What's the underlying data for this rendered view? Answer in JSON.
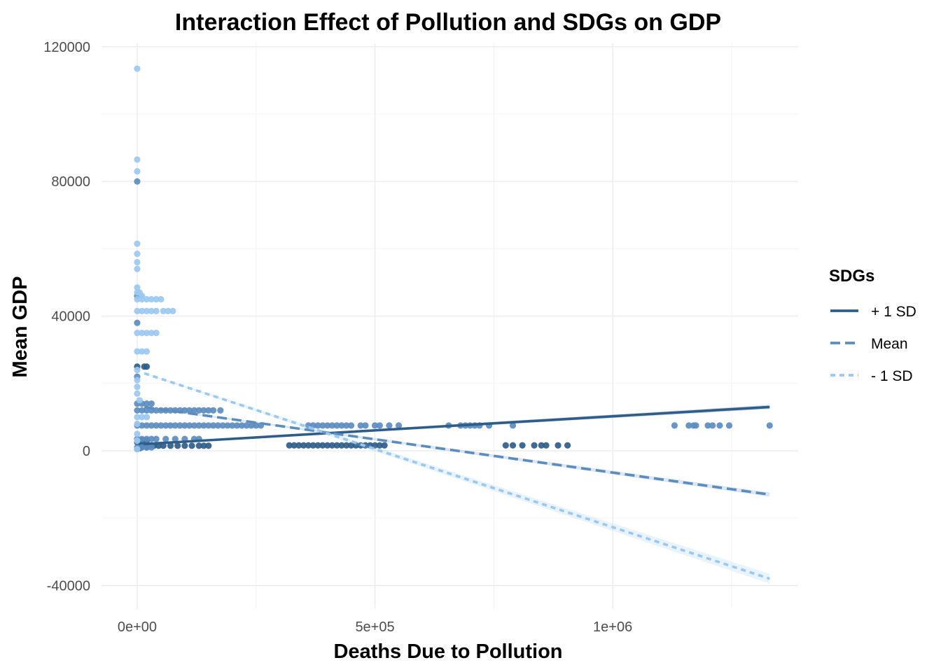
{
  "chart_data": {
    "type": "scatter",
    "title": "Interaction Effect of Pollution and SDGs on GDP",
    "xlabel": "Deaths Due to Pollution",
    "ylabel": "Mean GDP",
    "xlim": [
      -75000,
      1390000
    ],
    "ylim": [
      -47000,
      121000
    ],
    "x_ticks": [
      0,
      500000,
      1000000
    ],
    "x_tick_labels": [
      "0e+00",
      "5e+05",
      "1e+06"
    ],
    "y_ticks": [
      -40000,
      0,
      40000,
      80000,
      120000
    ],
    "y_tick_labels": [
      "-40000",
      "0",
      "40000",
      "80000",
      "120000"
    ],
    "grid": true,
    "legend": {
      "title": "SDGs",
      "position": "right"
    },
    "series": [
      {
        "name": "+ 1 SD",
        "color": "#2e5d8a",
        "linetype": "solid",
        "fit_line": {
          "x": [
            15000,
            1330000
          ],
          "y": [
            2000,
            13000
          ]
        },
        "points": [
          [
            0,
            500
          ],
          [
            2000,
            1000
          ],
          [
            4000,
            1500
          ],
          [
            6000,
            800
          ],
          [
            10000,
            1200
          ],
          [
            15000,
            1500
          ],
          [
            20000,
            1000
          ],
          [
            25000,
            1400
          ],
          [
            35000,
            1500
          ],
          [
            45000,
            1500
          ],
          [
            55000,
            1500
          ],
          [
            70000,
            1500
          ],
          [
            85000,
            1500
          ],
          [
            100000,
            1500
          ],
          [
            115000,
            1500
          ],
          [
            130000,
            1500
          ],
          [
            140000,
            1500
          ],
          [
            150000,
            1500
          ],
          [
            0,
            2500
          ],
          [
            5000,
            2500
          ],
          [
            10000,
            3000
          ],
          [
            20000,
            3000
          ],
          [
            0,
            25000
          ],
          [
            15000,
            25000
          ],
          [
            20000,
            25000
          ],
          [
            320000,
            1600
          ],
          [
            330000,
            1600
          ],
          [
            340000,
            1600
          ],
          [
            350000,
            1600
          ],
          [
            360000,
            1600
          ],
          [
            370000,
            1600
          ],
          [
            380000,
            1600
          ],
          [
            390000,
            1600
          ],
          [
            400000,
            1600
          ],
          [
            410000,
            1600
          ],
          [
            420000,
            1600
          ],
          [
            430000,
            1600
          ],
          [
            440000,
            1600
          ],
          [
            450000,
            1600
          ],
          [
            460000,
            1600
          ],
          [
            470000,
            1600
          ],
          [
            480000,
            1600
          ],
          [
            490000,
            1600
          ],
          [
            500000,
            1600
          ],
          [
            510000,
            1600
          ],
          [
            520000,
            1600
          ],
          [
            775000,
            1600
          ],
          [
            790000,
            1600
          ],
          [
            810000,
            1600
          ],
          [
            835000,
            1600
          ],
          [
            850000,
            1600
          ],
          [
            860000,
            1600
          ],
          [
            885000,
            1600
          ],
          [
            905000,
            1600
          ]
        ]
      },
      {
        "name": "Mean",
        "color": "#5b8cc0",
        "linetype": "dashed",
        "fit_line": {
          "x": [
            15000,
            1330000
          ],
          "y": [
            13000,
            -13000
          ]
        },
        "points": [
          [
            0,
            80000
          ],
          [
            0,
            46000
          ],
          [
            0,
            38000
          ],
          [
            0,
            22000
          ],
          [
            0,
            12000
          ],
          [
            10000,
            12000
          ],
          [
            20000,
            12000
          ],
          [
            30000,
            12000
          ],
          [
            40000,
            12000
          ],
          [
            50000,
            12000
          ],
          [
            60000,
            12000
          ],
          [
            70000,
            12000
          ],
          [
            80000,
            12000
          ],
          [
            90000,
            12000
          ],
          [
            100000,
            12000
          ],
          [
            110000,
            12000
          ],
          [
            120000,
            12000
          ],
          [
            130000,
            12000
          ],
          [
            140000,
            12000
          ],
          [
            150000,
            12000
          ],
          [
            160000,
            12000
          ],
          [
            175000,
            12000
          ],
          [
            0,
            14000
          ],
          [
            10000,
            14000
          ],
          [
            20000,
            14000
          ],
          [
            30000,
            14000
          ],
          [
            0,
            7500
          ],
          [
            10000,
            7500
          ],
          [
            20000,
            7500
          ],
          [
            30000,
            7500
          ],
          [
            40000,
            7500
          ],
          [
            50000,
            7500
          ],
          [
            60000,
            7500
          ],
          [
            70000,
            7500
          ],
          [
            80000,
            7500
          ],
          [
            90000,
            7500
          ],
          [
            100000,
            7500
          ],
          [
            110000,
            7500
          ],
          [
            120000,
            7500
          ],
          [
            130000,
            7500
          ],
          [
            140000,
            7500
          ],
          [
            150000,
            7500
          ],
          [
            160000,
            7500
          ],
          [
            170000,
            7500
          ],
          [
            180000,
            7500
          ],
          [
            190000,
            7500
          ],
          [
            200000,
            7500
          ],
          [
            210000,
            7500
          ],
          [
            220000,
            7500
          ],
          [
            230000,
            7500
          ],
          [
            240000,
            7500
          ],
          [
            250000,
            7500
          ],
          [
            260000,
            7500
          ],
          [
            360000,
            7500
          ],
          [
            370000,
            7500
          ],
          [
            380000,
            7500
          ],
          [
            390000,
            7500
          ],
          [
            400000,
            7500
          ],
          [
            410000,
            7500
          ],
          [
            420000,
            7500
          ],
          [
            430000,
            7500
          ],
          [
            440000,
            7500
          ],
          [
            450000,
            7500
          ],
          [
            470000,
            7500
          ],
          [
            480000,
            7500
          ],
          [
            500000,
            7500
          ],
          [
            510000,
            7500
          ],
          [
            530000,
            7500
          ],
          [
            550000,
            7500
          ],
          [
            655000,
            7500
          ],
          [
            680000,
            7500
          ],
          [
            690000,
            7500
          ],
          [
            700000,
            7500
          ],
          [
            710000,
            7500
          ],
          [
            720000,
            7500
          ],
          [
            740000,
            7500
          ],
          [
            790000,
            7500
          ],
          [
            1130000,
            7500
          ],
          [
            1160000,
            7500
          ],
          [
            1170000,
            7500
          ],
          [
            1175000,
            7500
          ],
          [
            1200000,
            7500
          ],
          [
            1210000,
            7500
          ],
          [
            1225000,
            7500
          ],
          [
            1245000,
            7500
          ],
          [
            1330000,
            7500
          ],
          [
            0,
            3500
          ],
          [
            10000,
            3500
          ],
          [
            20000,
            3500
          ],
          [
            30000,
            3500
          ],
          [
            40000,
            3500
          ],
          [
            60000,
            3500
          ],
          [
            80000,
            3500
          ],
          [
            100000,
            3500
          ],
          [
            120000,
            3500
          ],
          [
            130000,
            3500
          ],
          [
            0,
            1000
          ],
          [
            10000,
            1000
          ],
          [
            20000,
            1000
          ],
          [
            30000,
            1000
          ]
        ]
      },
      {
        "name": "- 1 SD",
        "color": "#9ac8f0",
        "linetype": "dotted",
        "fit_line": {
          "x": [
            15000,
            1330000
          ],
          "y": [
            23000,
            -38000
          ]
        },
        "points": [
          [
            0,
            113500
          ],
          [
            0,
            86500
          ],
          [
            0,
            83000
          ],
          [
            0,
            61500
          ],
          [
            0,
            58500
          ],
          [
            0,
            56000
          ],
          [
            0,
            54000
          ],
          [
            0,
            48500
          ],
          [
            0,
            47000
          ],
          [
            5000,
            47000
          ],
          [
            10000,
            46000
          ],
          [
            0,
            45000
          ],
          [
            10000,
            45000
          ],
          [
            20000,
            45000
          ],
          [
            30000,
            45000
          ],
          [
            40000,
            45000
          ],
          [
            50000,
            45000
          ],
          [
            0,
            41500
          ],
          [
            10000,
            41500
          ],
          [
            20000,
            41500
          ],
          [
            30000,
            41500
          ],
          [
            40000,
            41500
          ],
          [
            55000,
            41500
          ],
          [
            65000,
            41500
          ],
          [
            75000,
            41500
          ],
          [
            0,
            35000
          ],
          [
            10000,
            35000
          ],
          [
            20000,
            35000
          ],
          [
            30000,
            35000
          ],
          [
            40000,
            35000
          ],
          [
            0,
            29500
          ],
          [
            10000,
            29500
          ],
          [
            20000,
            29500
          ],
          [
            0,
            24000
          ],
          [
            0,
            21000
          ],
          [
            0,
            19000
          ],
          [
            0,
            17000
          ],
          [
            5000,
            15000
          ],
          [
            0,
            10000
          ],
          [
            10000,
            10000
          ],
          [
            20000,
            10000
          ],
          [
            0,
            8000
          ],
          [
            0,
            5000
          ],
          [
            0,
            3000
          ],
          [
            0,
            500
          ]
        ]
      }
    ]
  }
}
